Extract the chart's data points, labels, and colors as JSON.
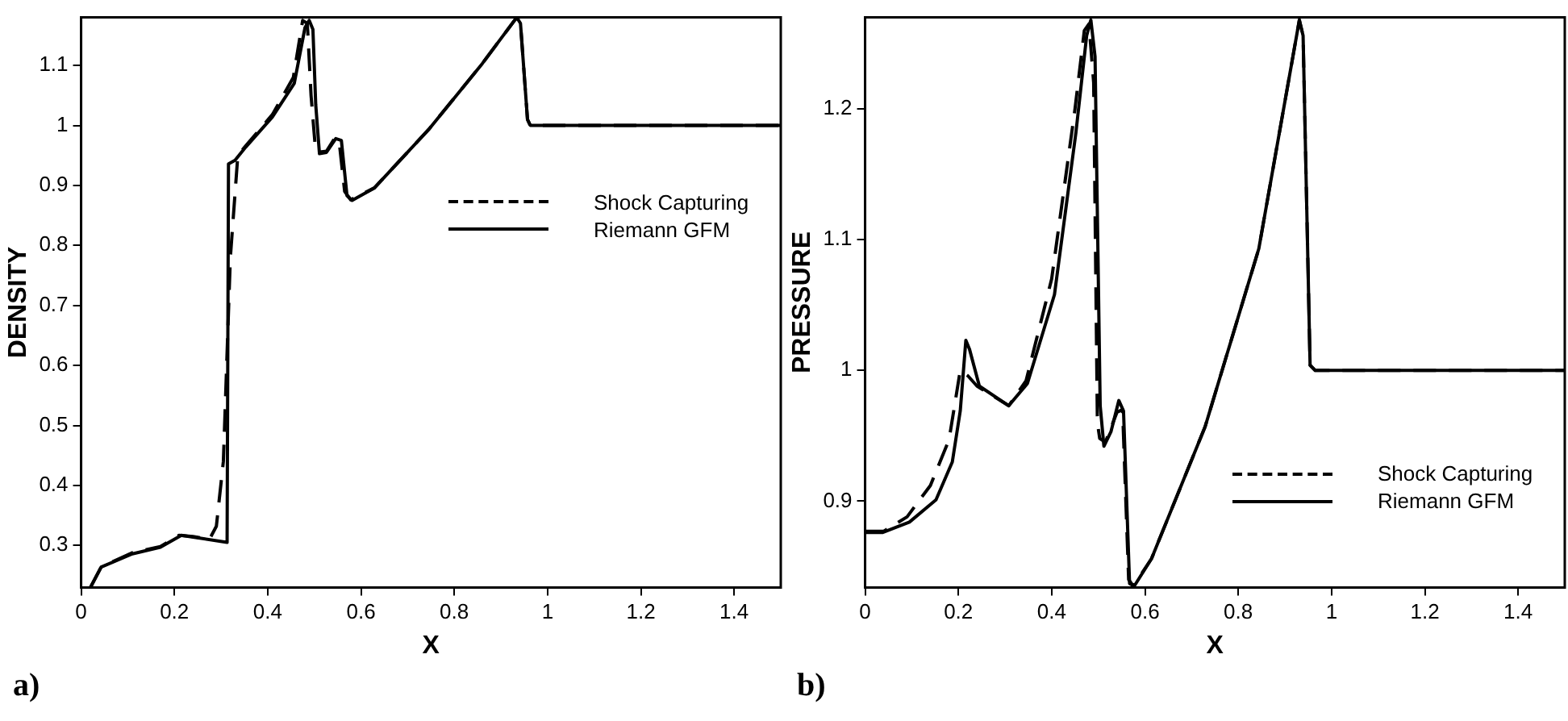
{
  "chart_data": [
    {
      "type": "line",
      "xlabel": "X",
      "ylabel": "DENSITY",
      "annotations": [
        "a)"
      ],
      "xlim": [
        0,
        1.5
      ],
      "ylim": [
        0.23,
        1.18
      ],
      "xticks": [
        0,
        0.2,
        0.4,
        0.6,
        0.8,
        1,
        1.2,
        1.4
      ],
      "yticks": [
        0.3,
        0.4,
        0.5,
        0.6,
        0.7,
        0.8,
        0.9,
        1,
        1.1
      ],
      "grid": false,
      "legend": "right",
      "marker": "none",
      "series": [
        {
          "name": "Shock Capturing",
          "color": "#000000",
          "line_style": "dashed",
          "x": [
            0.02,
            0.043,
            0.11,
            0.17,
            0.21,
            0.24,
            0.275,
            0.29,
            0.305,
            0.32,
            0.336,
            0.353,
            0.41,
            0.455,
            0.475,
            0.485,
            0.493,
            0.503,
            0.526,
            0.543,
            0.553,
            0.565,
            0.578,
            0.629,
            0.745,
            0.86,
            0.934,
            0.942,
            0.957,
            0.963,
            1.5
          ],
          "values": [
            0.23,
            0.264,
            0.288,
            0.298,
            0.317,
            0.315,
            0.31,
            0.332,
            0.44,
            0.78,
            0.95,
            0.966,
            1.018,
            1.08,
            1.175,
            1.17,
            1.05,
            0.955,
            0.957,
            0.978,
            0.975,
            0.89,
            0.876,
            0.896,
            0.993,
            1.103,
            1.18,
            1.17,
            1.01,
            1.0,
            1.0
          ]
        },
        {
          "name": "Riemann GFM",
          "color": "#000000",
          "line_style": "solid",
          "x": [
            0.02,
            0.043,
            0.11,
            0.17,
            0.215,
            0.24,
            0.313,
            0.316,
            0.33,
            0.353,
            0.41,
            0.457,
            0.48,
            0.489,
            0.497,
            0.503,
            0.511,
            0.526,
            0.546,
            0.558,
            0.57,
            0.581,
            0.629,
            0.745,
            0.86,
            0.934,
            0.942,
            0.957,
            0.963,
            1.5
          ],
          "values": [
            0.23,
            0.264,
            0.286,
            0.297,
            0.317,
            0.314,
            0.305,
            0.936,
            0.942,
            0.964,
            1.014,
            1.07,
            1.163,
            1.175,
            1.16,
            1.035,
            0.953,
            0.955,
            0.978,
            0.975,
            0.883,
            0.875,
            0.896,
            0.993,
            1.103,
            1.18,
            1.17,
            1.01,
            1.0,
            1.0
          ]
        }
      ]
    },
    {
      "type": "line",
      "xlabel": "X",
      "ylabel": "PRESSURE",
      "annotations": [
        "b)"
      ],
      "xlim": [
        0,
        1.5
      ],
      "ylim": [
        0.834,
        1.27
      ],
      "xticks": [
        0,
        0.2,
        0.4,
        0.6,
        0.8,
        1,
        1.2,
        1.4
      ],
      "yticks": [
        0.9,
        1,
        1.1,
        1.2
      ],
      "grid": false,
      "legend": "bottom right",
      "marker": "none",
      "series": [
        {
          "name": "Shock Capturing",
          "color": "#000000",
          "line_style": "dashed",
          "x": [
            0,
            0.04,
            0.09,
            0.14,
            0.18,
            0.204,
            0.22,
            0.24,
            0.308,
            0.345,
            0.4,
            0.45,
            0.47,
            0.48,
            0.49,
            0.498,
            0.503,
            0.515,
            0.54,
            0.552,
            0.565,
            0.575,
            0.614,
            0.729,
            0.844,
            0.931,
            0.939,
            0.954,
            0.965,
            1.5
          ],
          "values": [
            0.877,
            0.877,
            0.888,
            0.912,
            0.947,
            1.0,
            0.996,
            0.988,
            0.973,
            0.992,
            1.07,
            1.2,
            1.26,
            1.265,
            1.22,
            0.96,
            0.948,
            0.945,
            0.968,
            0.97,
            0.84,
            0.835,
            0.856,
            0.957,
            1.093,
            1.268,
            1.256,
            1.004,
            1.0,
            1.0
          ]
        },
        {
          "name": "Riemann GFM",
          "color": "#000000",
          "line_style": "solid",
          "x": [
            0,
            0.037,
            0.095,
            0.152,
            0.187,
            0.204,
            0.216,
            0.224,
            0.245,
            0.308,
            0.348,
            0.406,
            0.452,
            0.475,
            0.484,
            0.493,
            0.504,
            0.512,
            0.527,
            0.544,
            0.554,
            0.567,
            0.577,
            0.614,
            0.729,
            0.844,
            0.931,
            0.939,
            0.954,
            0.965,
            1.5
          ],
          "values": [
            0.876,
            0.876,
            0.884,
            0.901,
            0.93,
            0.969,
            1.023,
            1.016,
            0.988,
            0.973,
            0.99,
            1.058,
            1.182,
            1.256,
            1.268,
            1.24,
            0.973,
            0.942,
            0.953,
            0.977,
            0.969,
            0.837,
            0.835,
            0.856,
            0.957,
            1.093,
            1.268,
            1.256,
            1.004,
            1.0,
            1.0
          ]
        }
      ]
    }
  ]
}
